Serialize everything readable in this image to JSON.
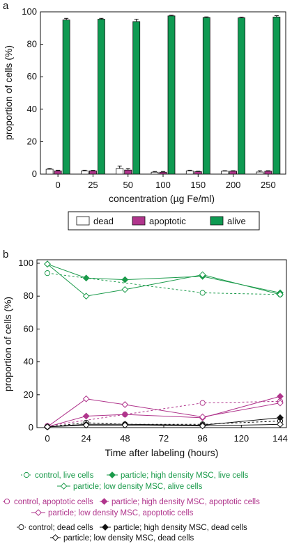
{
  "chart_data": [
    {
      "panel": "a",
      "type": "bar",
      "categories": [
        "0",
        "25",
        "50",
        "100",
        "150",
        "200",
        "250"
      ],
      "xlabel": "concentration (µg Fe/ml)",
      "ylabel": "proportion of cells (%)",
      "ylim": [
        0,
        100
      ],
      "yticks": [
        "0",
        "20",
        "40",
        "60",
        "80",
        "100"
      ],
      "legend_position": "bottom",
      "series": [
        {
          "name": "dead",
          "color": "#ffffff",
          "values": [
            3,
            2,
            3.5,
            1.2,
            2,
            1.8,
            1.3
          ],
          "errors": [
            0.5,
            0.4,
            1.5,
            0.4,
            0.4,
            0.3,
            0.8
          ]
        },
        {
          "name": "apoptotic",
          "color": "#b0358c",
          "values": [
            2,
            2,
            2.5,
            1.2,
            1.5,
            1.8,
            1.8
          ],
          "errors": [
            0.4,
            0.3,
            1,
            0.4,
            0.3,
            0.3,
            0.3
          ]
        },
        {
          "name": "alive",
          "color": "#0f9a52",
          "values": [
            95,
            95.5,
            94,
            97.5,
            96.5,
            96.3,
            96.8
          ],
          "errors": [
            1,
            0.5,
            1.5,
            0.4,
            0.4,
            0.4,
            0.8
          ]
        }
      ]
    },
    {
      "panel": "b",
      "type": "line",
      "x": [
        0,
        24,
        48,
        96,
        144
      ],
      "xticks": [
        "0",
        "24",
        "48",
        "72",
        "96",
        "120",
        "144"
      ],
      "yticks": [
        "0",
        "20",
        "40",
        "60",
        "80",
        "100"
      ],
      "xlabel": "Time after labeling (hours)",
      "ylabel": "proportion  of cells (%)",
      "xlim": [
        0,
        144
      ],
      "ylim": [
        0,
        100
      ],
      "legend_position": "bottom",
      "series": [
        {
          "name": "control, live cells",
          "color": "#1a9a4a",
          "style": "dashed",
          "marker": "circle-open",
          "values": [
            94,
            null,
            null,
            82,
            81
          ]
        },
        {
          "name": "particle; high density MSC, live cells",
          "color": "#1a9a4a",
          "style": "solid",
          "marker": "diamond-filled",
          "values": [
            99.5,
            91,
            90,
            92,
            82
          ]
        },
        {
          "name": "particle; low density MSC, alive cells",
          "color": "#1a9a4a",
          "style": "solid",
          "marker": "diamond-open",
          "values": [
            99.5,
            80,
            84,
            93,
            81
          ]
        },
        {
          "name": "control, apoptotic cells",
          "color": "#b0358c",
          "style": "dashed",
          "marker": "circle-open",
          "values": [
            1,
            null,
            8,
            15,
            16
          ]
        },
        {
          "name": "particle; high density MSC, apoptotic cells",
          "color": "#b0358c",
          "style": "solid",
          "marker": "diamond-filled",
          "values": [
            0.5,
            7,
            8,
            6,
            19
          ]
        },
        {
          "name": "particle; low density MSC, apoptotic cells",
          "color": "#b0358c",
          "style": "solid",
          "marker": "diamond-open",
          "values": [
            0.5,
            17.5,
            14,
            6.5,
            15
          ]
        },
        {
          "name": "control; dead cells",
          "color": "#111111",
          "style": "dashed",
          "marker": "circle-open",
          "values": [
            0.5,
            3,
            2,
            2,
            4
          ]
        },
        {
          "name": "particle; high density MSC, dead cells",
          "color": "#111111",
          "style": "solid",
          "marker": "diamond-filled",
          "values": [
            0.5,
            2,
            2,
            1.5,
            6
          ]
        },
        {
          "name": "particle; low density MSC, dead cells",
          "color": "#111111",
          "style": "solid",
          "marker": "diamond-open",
          "values": [
            0.5,
            1.5,
            1.5,
            1,
            2
          ]
        }
      ]
    }
  ]
}
